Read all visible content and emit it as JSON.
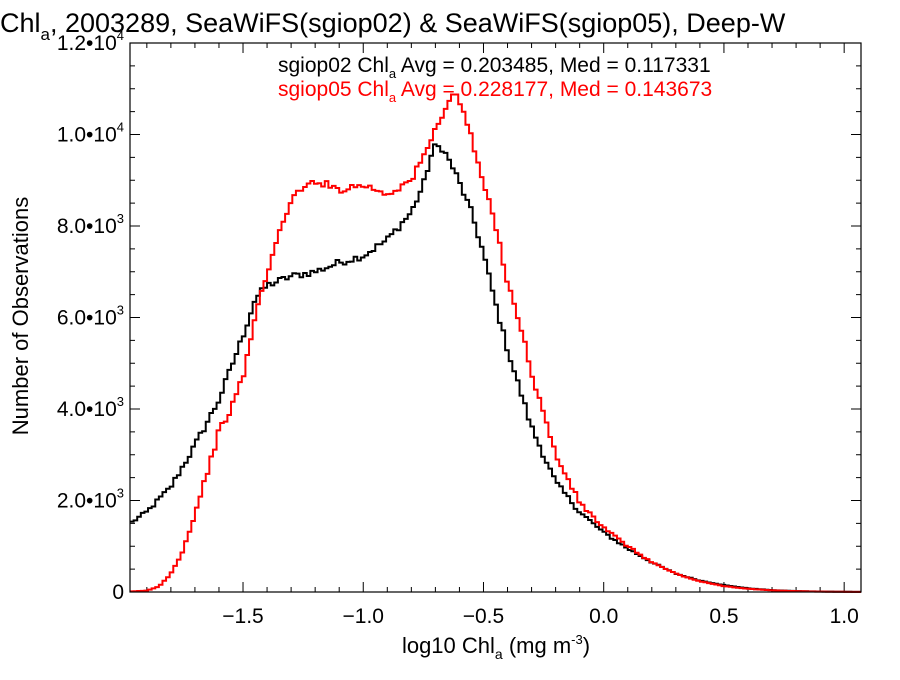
{
  "chart_data": {
    "type": "line",
    "title": {
      "prefix": "Chl",
      "sub": "a",
      "rest": ", 2003289, SeaWiFS(sgiop02) & SeaWiFS(sgiop05), Deep-W"
    },
    "xlabel": {
      "prefix": "log10 Chl",
      "sub": "a",
      "mid": " (mg m",
      "sup": "-3",
      "suffix": ")"
    },
    "ylabel": "Number of Observations",
    "xlim": [
      -1.97,
      1.07
    ],
    "ylim": [
      0,
      12000
    ],
    "x_ticks": [
      {
        "value": -1.5,
        "label": "−1.5"
      },
      {
        "value": -1.0,
        "label": "−1.0"
      },
      {
        "value": -0.5,
        "label": "−0.5"
      },
      {
        "value": 0.0,
        "label": "0.0"
      },
      {
        "value": 0.5,
        "label": "0.5"
      },
      {
        "value": 1.0,
        "label": "1.0"
      }
    ],
    "y_ticks": [
      {
        "value": 0,
        "base": "0",
        "exp": ""
      },
      {
        "value": 2000,
        "base": "2.0•10",
        "exp": "3"
      },
      {
        "value": 4000,
        "base": "4.0•10",
        "exp": "3"
      },
      {
        "value": 6000,
        "base": "6.0•10",
        "exp": "3"
      },
      {
        "value": 8000,
        "base": "8.0•10",
        "exp": "3"
      },
      {
        "value": 10000,
        "base": "1.0•10",
        "exp": "4"
      },
      {
        "value": 12000,
        "base": "1.2•10",
        "exp": "4"
      }
    ],
    "grid": false,
    "legend_position": "top-center",
    "x_step": 0.015,
    "series": [
      {
        "name": "sgiop02",
        "color": "#000000",
        "stats": {
          "prefix": "sgiop02 Chl",
          "sub": "a",
          "rest": " Avg = 0.203485, Med = 0.117331"
        },
        "points": [
          [
            -1.97,
            1500
          ],
          [
            -1.9,
            1750
          ],
          [
            -1.8,
            2300
          ],
          [
            -1.7,
            3200
          ],
          [
            -1.6,
            4200
          ],
          [
            -1.5,
            5600
          ],
          [
            -1.45,
            6400
          ],
          [
            -1.4,
            6700
          ],
          [
            -1.3,
            6900
          ],
          [
            -1.2,
            7000
          ],
          [
            -1.1,
            7200
          ],
          [
            -1.0,
            7350
          ],
          [
            -0.9,
            7700
          ],
          [
            -0.8,
            8300
          ],
          [
            -0.75,
            8900
          ],
          [
            -0.72,
            9500
          ],
          [
            -0.7,
            9750
          ],
          [
            -0.67,
            9700
          ],
          [
            -0.62,
            9200
          ],
          [
            -0.55,
            8300
          ],
          [
            -0.5,
            7400
          ],
          [
            -0.45,
            6300
          ],
          [
            -0.4,
            5300
          ],
          [
            -0.3,
            3600
          ],
          [
            -0.2,
            2400
          ],
          [
            -0.1,
            1750
          ],
          [
            0.0,
            1300
          ],
          [
            0.1,
            950
          ],
          [
            0.2,
            650
          ],
          [
            0.3,
            400
          ],
          [
            0.4,
            250
          ],
          [
            0.5,
            150
          ],
          [
            0.6,
            80
          ],
          [
            0.7,
            40
          ],
          [
            0.8,
            20
          ],
          [
            0.9,
            10
          ],
          [
            1.0,
            5
          ],
          [
            1.07,
            2
          ]
        ]
      },
      {
        "name": "sgiop05",
        "color": "#ff0000",
        "stats": {
          "prefix": "sgiop05 Chl",
          "sub": "a",
          "rest": " Avg = 0.228177, Med = 0.143673"
        },
        "points": [
          [
            -1.97,
            10
          ],
          [
            -1.9,
            30
          ],
          [
            -1.85,
            120
          ],
          [
            -1.8,
            400
          ],
          [
            -1.75,
            900
          ],
          [
            -1.7,
            1700
          ],
          [
            -1.65,
            2600
          ],
          [
            -1.6,
            3500
          ],
          [
            -1.55,
            4000
          ],
          [
            -1.5,
            4700
          ],
          [
            -1.45,
            6000
          ],
          [
            -1.4,
            7000
          ],
          [
            -1.35,
            7800
          ],
          [
            -1.3,
            8600
          ],
          [
            -1.2,
            9000
          ],
          [
            -1.1,
            8800
          ],
          [
            -1.0,
            8900
          ],
          [
            -0.9,
            8700
          ],
          [
            -0.8,
            9000
          ],
          [
            -0.75,
            9500
          ],
          [
            -0.7,
            10100
          ],
          [
            -0.65,
            10700
          ],
          [
            -0.62,
            10900
          ],
          [
            -0.58,
            10500
          ],
          [
            -0.52,
            9300
          ],
          [
            -0.45,
            8000
          ],
          [
            -0.4,
            6800
          ],
          [
            -0.35,
            5900
          ],
          [
            -0.3,
            4800
          ],
          [
            -0.2,
            3000
          ],
          [
            -0.1,
            1950
          ],
          [
            0.0,
            1400
          ],
          [
            0.1,
            1000
          ],
          [
            0.2,
            650
          ],
          [
            0.3,
            400
          ],
          [
            0.4,
            230
          ],
          [
            0.5,
            130
          ],
          [
            0.6,
            70
          ],
          [
            0.7,
            35
          ],
          [
            0.8,
            18
          ],
          [
            0.9,
            8
          ],
          [
            1.0,
            4
          ],
          [
            1.07,
            2
          ]
        ]
      }
    ]
  }
}
